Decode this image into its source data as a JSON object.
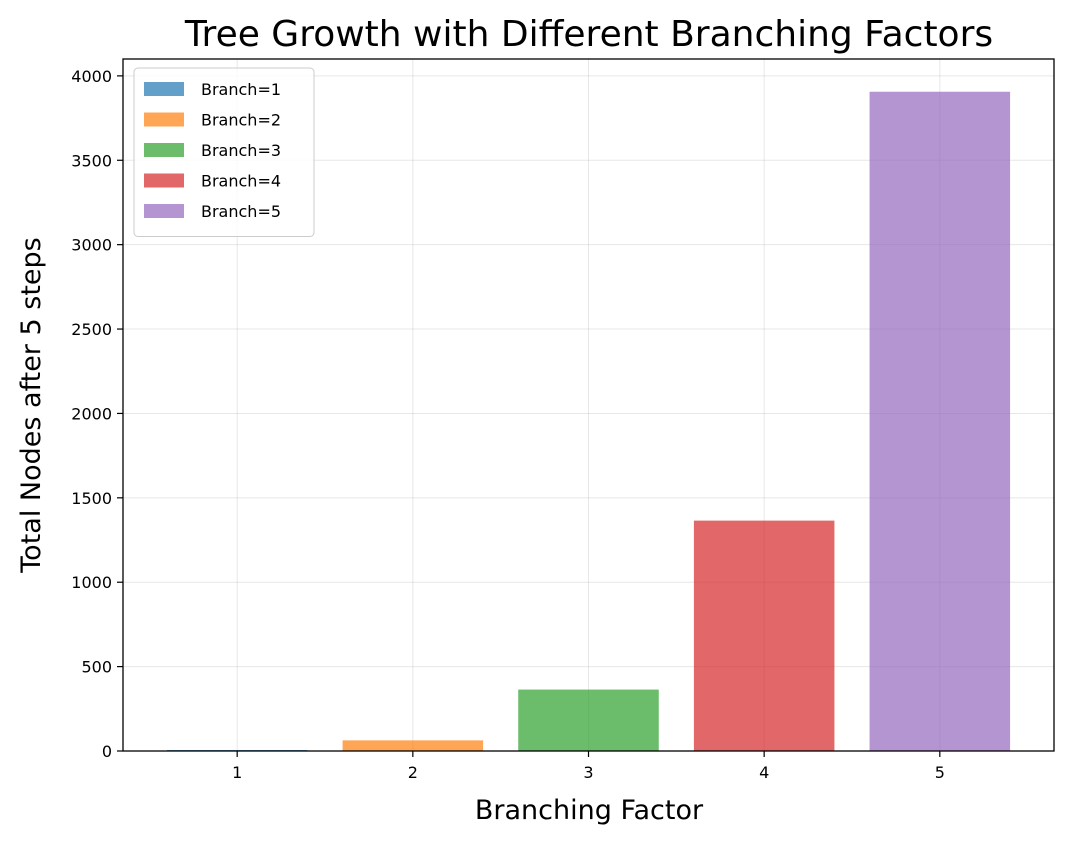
{
  "chart_data": {
    "type": "bar",
    "title": "Tree Growth with Different Branching Factors",
    "xlabel": "Branching Factor",
    "ylabel": "Total Nodes after 5 steps",
    "categories": [
      "1",
      "2",
      "3",
      "4",
      "5"
    ],
    "x": [
      1,
      2,
      3,
      4,
      5
    ],
    "values": [
      6,
      63,
      364,
      1365,
      3906
    ],
    "series": [
      {
        "name": "Branch=1",
        "x": 1,
        "value": 6,
        "color": "#1f77b4"
      },
      {
        "name": "Branch=2",
        "x": 2,
        "value": 63,
        "color": "#ff7f0e"
      },
      {
        "name": "Branch=3",
        "x": 3,
        "value": 364,
        "color": "#2ca02c"
      },
      {
        "name": "Branch=4",
        "x": 4,
        "value": 1365,
        "color": "#d62728"
      },
      {
        "name": "Branch=5",
        "x": 5,
        "value": 3906,
        "color": "#9467bd"
      }
    ],
    "bar_opacity": 0.7,
    "xlim": [
      0.35,
      5.65
    ],
    "ylim": [
      0,
      4100
    ],
    "yticks": [
      0,
      500,
      1000,
      1500,
      2000,
      2500,
      3000,
      3500,
      4000
    ],
    "xticks": [
      1,
      2,
      3,
      4,
      5
    ],
    "grid": true,
    "legend_position": "top-left"
  }
}
